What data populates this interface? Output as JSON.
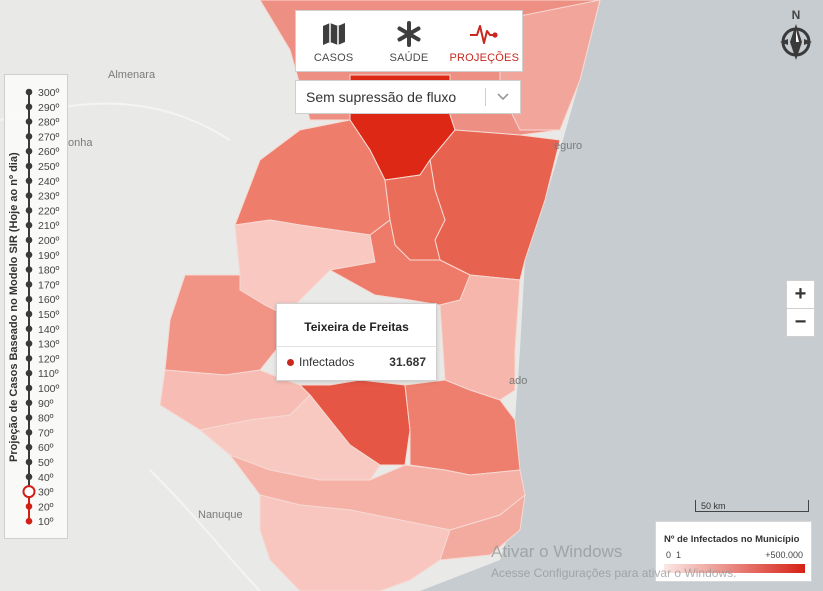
{
  "modes": [
    {
      "label": "CASOS",
      "icon": "map-icon",
      "active": false
    },
    {
      "label": "SAÚDE",
      "icon": "asterisk-icon",
      "active": false
    },
    {
      "label": "PROJEÇÕES",
      "icon": "heartbeat-icon",
      "active": true
    }
  ],
  "scenario_select": {
    "value": "Sem supressão de fluxo"
  },
  "compass": {
    "label": "N"
  },
  "zoom": {
    "in": "+",
    "out": "−"
  },
  "slider": {
    "title": "Projeção de Casos Baseado no Modelo SIR (Hoje ao nº dia)",
    "ticks": [
      "300º",
      "290º",
      "280º",
      "270º",
      "260º",
      "250º",
      "240º",
      "230º",
      "220º",
      "210º",
      "200º",
      "190º",
      "180º",
      "170º",
      "160º",
      "150º",
      "140º",
      "130º",
      "120º",
      "110º",
      "100º",
      "90º",
      "80º",
      "70º",
      "60º",
      "50º",
      "40º",
      "30º",
      "20º",
      "10º"
    ],
    "selected": "30º",
    "inactive_color": "#3a3a3a",
    "active_color": "#d21f16"
  },
  "map_labels": {
    "almenara": "Almenara",
    "onha": "onha",
    "seguro": "eguro",
    "nanuque": "Nanuque",
    "ado": "ado"
  },
  "tooltip": {
    "title": "Teixeira de Freitas",
    "metric": "Infectados",
    "value": "31.687"
  },
  "scale": {
    "label": "50 km"
  },
  "legend": {
    "title": "Nº de Infectados no Município",
    "min0": "0",
    "min1": "1",
    "max": "+500.000",
    "color_low": "#fbe8e5",
    "color_high": "#d62115"
  },
  "watermark": {
    "line1": "Ativar o Windows",
    "line2": "Acesse Configurações para ativar o Windows."
  },
  "colors": {
    "accent": "#c8281e",
    "sea": "#c6ccd0",
    "land": "#e8e8e6"
  }
}
